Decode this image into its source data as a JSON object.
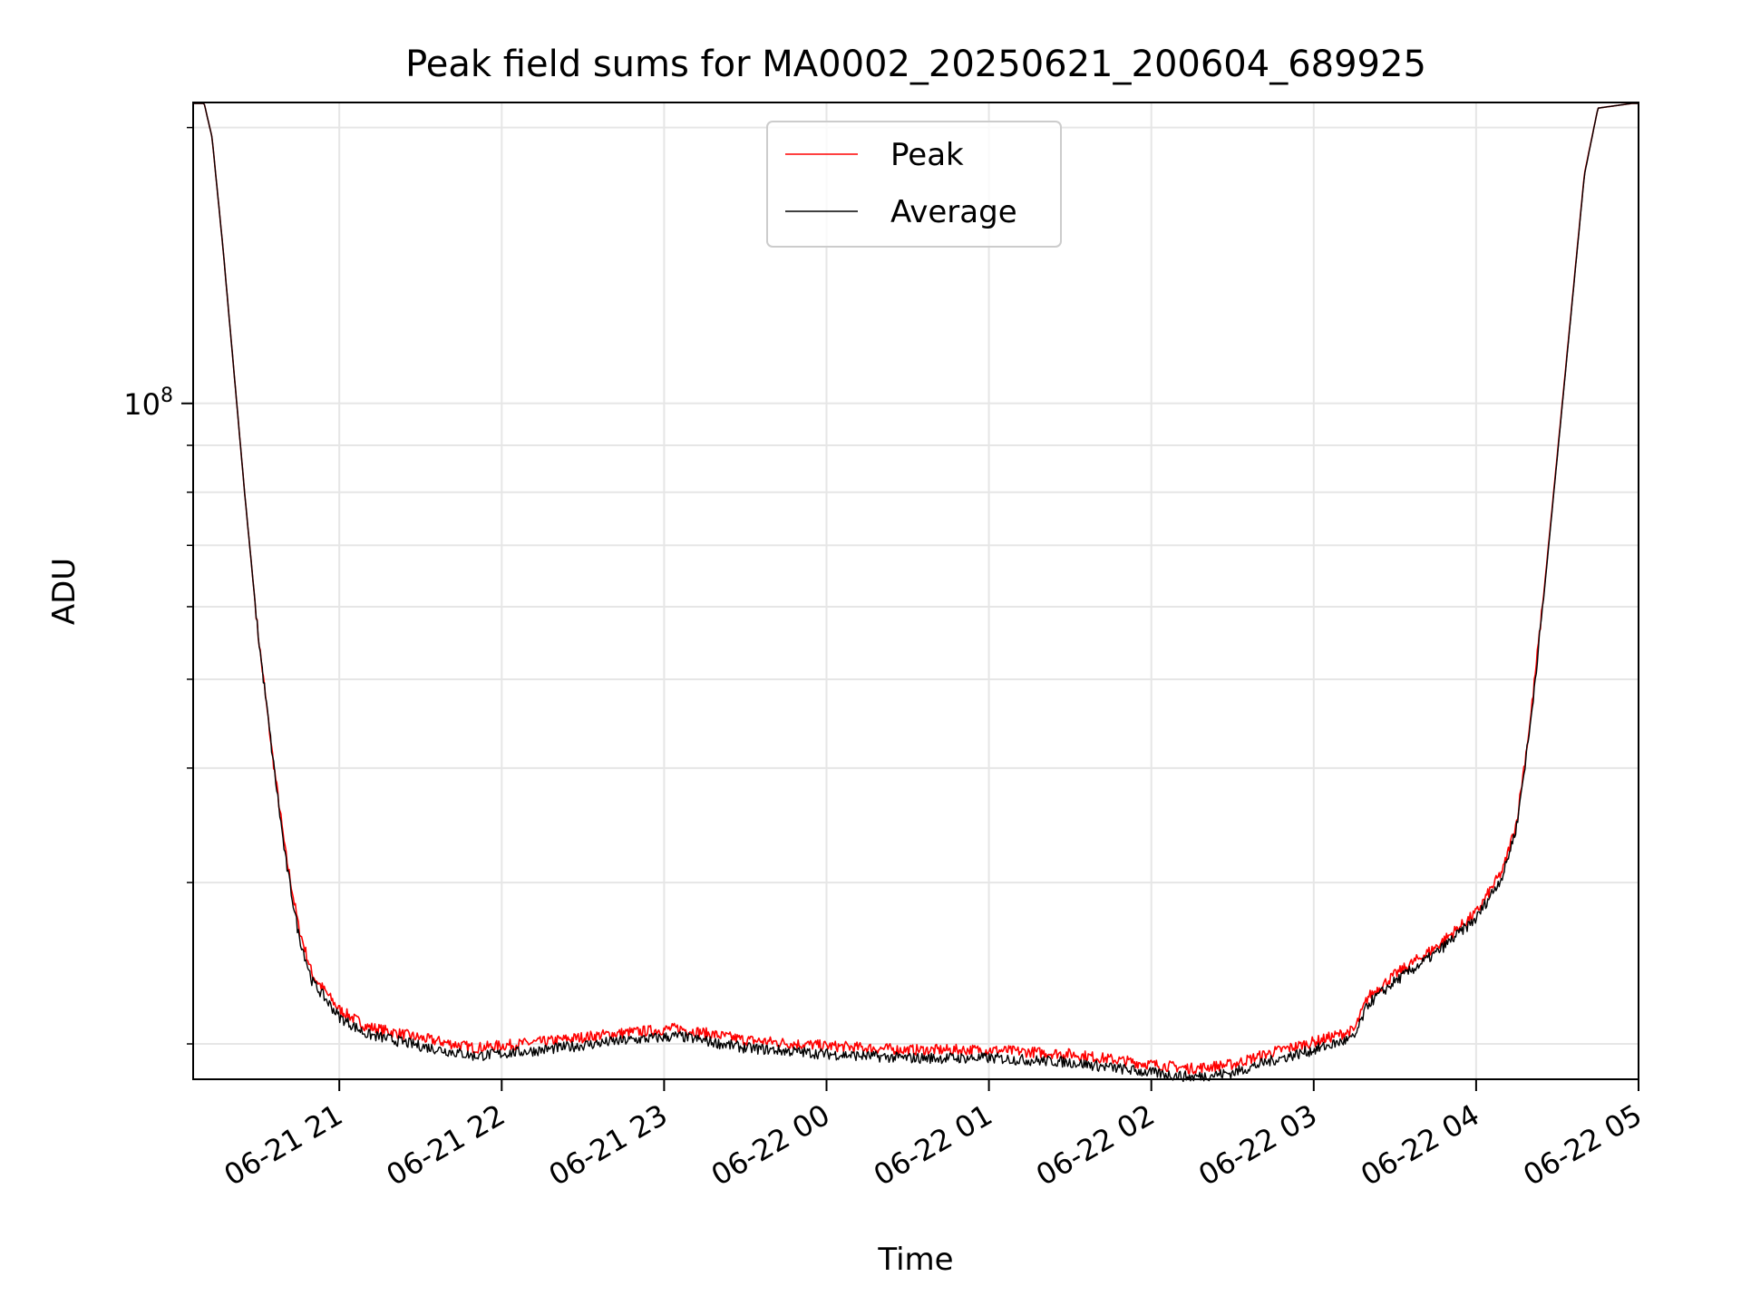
{
  "chart_data": {
    "type": "line",
    "title": "Peak field sums for MA0002_20250621_200604_689925",
    "xlabel": "Time",
    "ylabel": "ADU",
    "yscale": "log",
    "xlim": [
      "2025-06-21 20:06",
      "2025-06-22 05:00"
    ],
    "ylim": [
      18300000,
      213000000
    ],
    "x_ticks": [
      "2025-06-21 21:00",
      "2025-06-21 22:00",
      "2025-06-21 23:00",
      "2025-06-22 00:00",
      "2025-06-22 01:00",
      "2025-06-22 02:00",
      "2025-06-22 03:00",
      "2025-06-22 04:00",
      "2025-06-22 05:00"
    ],
    "x_tick_labels": [
      "06-21 21",
      "06-21 22",
      "06-21 23",
      "06-22 00",
      "06-22 01",
      "06-22 02",
      "06-22 03",
      "06-22 04",
      "06-22 05"
    ],
    "y_major_tick_labels": [
      {
        "value": 100000000,
        "base": "10",
        "exp": "8"
      }
    ],
    "y_minor_ticks": [
      20000000,
      30000000,
      40000000,
      50000000,
      60000000,
      70000000,
      80000000,
      90000000,
      200000000
    ],
    "grid": true,
    "legend": {
      "position": "upper center",
      "entries": [
        "Peak",
        "Average"
      ]
    },
    "colors": {
      "peak": "#ff0000",
      "average": "#000000",
      "grid": "#e6e6e6"
    },
    "series": [
      {
        "name": "Peak",
        "color": "#ff0000",
        "points": [
          [
            "2025-06-21 20:06",
            213000000
          ],
          [
            "2025-06-21 20:10",
            213000000
          ],
          [
            "2025-06-21 20:13",
            195000000
          ],
          [
            "2025-06-21 20:17",
            148000000
          ],
          [
            "2025-06-21 20:21",
            109000000
          ],
          [
            "2025-06-21 20:25",
            80000000
          ],
          [
            "2025-06-21 20:30",
            56000000
          ],
          [
            "2025-06-21 20:35",
            42000000
          ],
          [
            "2025-06-21 20:40",
            32500000
          ],
          [
            "2025-06-21 20:45",
            26800000
          ],
          [
            "2025-06-21 20:50",
            23800000
          ],
          [
            "2025-06-21 21:00",
            21800000
          ],
          [
            "2025-06-21 21:10",
            20900000
          ],
          [
            "2025-06-21 21:30",
            20300000
          ],
          [
            "2025-06-21 21:50",
            19800000
          ],
          [
            "2025-06-21 22:15",
            20100000
          ],
          [
            "2025-06-21 22:40",
            20500000
          ],
          [
            "2025-06-21 23:05",
            20800000
          ],
          [
            "2025-06-21 23:30",
            20200000
          ],
          [
            "2025-06-22 00:00",
            19900000
          ],
          [
            "2025-06-22 00:30",
            19700000
          ],
          [
            "2025-06-22 01:00",
            19700000
          ],
          [
            "2025-06-22 01:30",
            19500000
          ],
          [
            "2025-06-22 02:00",
            19000000
          ],
          [
            "2025-06-22 02:15",
            18800000
          ],
          [
            "2025-06-22 02:30",
            19000000
          ],
          [
            "2025-06-22 02:45",
            19600000
          ],
          [
            "2025-06-22 03:00",
            20100000
          ],
          [
            "2025-06-22 03:15",
            20700000
          ],
          [
            "2025-06-22 03:20",
            22500000
          ],
          [
            "2025-06-22 03:30",
            23800000
          ],
          [
            "2025-06-22 03:45",
            25500000
          ],
          [
            "2025-06-22 04:00",
            27800000
          ],
          [
            "2025-06-22 04:10",
            31000000
          ],
          [
            "2025-06-22 04:15",
            35000000
          ],
          [
            "2025-06-22 04:20",
            45000000
          ],
          [
            "2025-06-22 04:25",
            62000000
          ],
          [
            "2025-06-22 04:30",
            88000000
          ],
          [
            "2025-06-22 04:35",
            125000000
          ],
          [
            "2025-06-22 04:40",
            178000000
          ],
          [
            "2025-06-22 04:45",
            210000000
          ],
          [
            "2025-06-22 05:00",
            213000000
          ]
        ]
      },
      {
        "name": "Average",
        "color": "#000000",
        "points": [
          [
            "2025-06-21 20:06",
            213000000
          ],
          [
            "2025-06-21 20:10",
            213000000
          ],
          [
            "2025-06-21 20:13",
            195000000
          ],
          [
            "2025-06-21 20:17",
            148000000
          ],
          [
            "2025-06-21 20:21",
            109000000
          ],
          [
            "2025-06-21 20:25",
            80000000
          ],
          [
            "2025-06-21 20:30",
            56000000
          ],
          [
            "2025-06-21 20:35",
            42000000
          ],
          [
            "2025-06-21 20:40",
            32000000
          ],
          [
            "2025-06-21 20:45",
            26300000
          ],
          [
            "2025-06-21 20:50",
            23400000
          ],
          [
            "2025-06-21 21:00",
            21400000
          ],
          [
            "2025-06-21 21:10",
            20500000
          ],
          [
            "2025-06-21 21:30",
            19900000
          ],
          [
            "2025-06-21 21:50",
            19400000
          ],
          [
            "2025-06-21 22:15",
            19700000
          ],
          [
            "2025-06-21 22:40",
            20100000
          ],
          [
            "2025-06-21 23:05",
            20400000
          ],
          [
            "2025-06-21 23:30",
            19800000
          ],
          [
            "2025-06-22 00:00",
            19500000
          ],
          [
            "2025-06-22 00:30",
            19300000
          ],
          [
            "2025-06-22 01:00",
            19300000
          ],
          [
            "2025-06-22 01:30",
            19100000
          ],
          [
            "2025-06-22 02:00",
            18600000
          ],
          [
            "2025-06-22 02:15",
            18400000
          ],
          [
            "2025-06-22 02:30",
            18600000
          ],
          [
            "2025-06-22 02:45",
            19200000
          ],
          [
            "2025-06-22 03:00",
            19700000
          ],
          [
            "2025-06-22 03:15",
            20300000
          ],
          [
            "2025-06-22 03:20",
            22100000
          ],
          [
            "2025-06-22 03:30",
            23400000
          ],
          [
            "2025-06-22 03:45",
            25100000
          ],
          [
            "2025-06-22 04:00",
            27400000
          ],
          [
            "2025-06-22 04:10",
            30600000
          ],
          [
            "2025-06-22 04:15",
            34600000
          ],
          [
            "2025-06-22 04:20",
            44500000
          ],
          [
            "2025-06-22 04:25",
            61500000
          ],
          [
            "2025-06-22 04:30",
            87500000
          ],
          [
            "2025-06-22 04:35",
            124500000
          ],
          [
            "2025-06-22 04:40",
            177500000
          ],
          [
            "2025-06-22 04:45",
            210000000
          ],
          [
            "2025-06-22 05:00",
            213000000
          ]
        ]
      }
    ]
  }
}
